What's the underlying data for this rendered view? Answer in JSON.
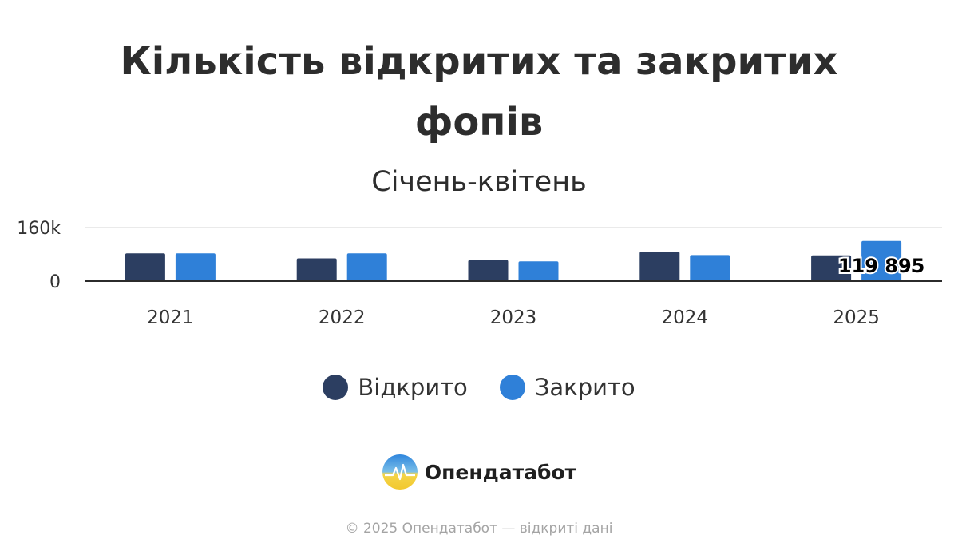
{
  "chart_data": {
    "type": "bar",
    "title_lines": [
      "Кількість відкритих та закритих",
      "фопів"
    ],
    "subtitle": "Січень-квітень",
    "categories": [
      "2021",
      "2022",
      "2023",
      "2024",
      "2025"
    ],
    "series": [
      {
        "name": "Відкрито",
        "color": "#2c3e61",
        "values": [
          83000,
          68000,
          63000,
          88000,
          77000
        ]
      },
      {
        "name": "Закрито",
        "color": "#2f80d8",
        "values": [
          83000,
          83000,
          59000,
          78000,
          119895
        ]
      }
    ],
    "y_ticks": [
      {
        "value": 0,
        "label": "0"
      },
      {
        "value": 160000,
        "label": "160k"
      }
    ],
    "ylim": [
      0,
      160000
    ],
    "grid": true,
    "legend_position": "bottom",
    "data_label": {
      "category": "2025",
      "series": "Закрито",
      "text": "119 895"
    }
  },
  "brand": {
    "name": "Опендатабот",
    "logo_icon": "opendatabot-logo-icon"
  },
  "footer": {
    "text": "© 2025 Опендатабот — відкриті дані"
  }
}
